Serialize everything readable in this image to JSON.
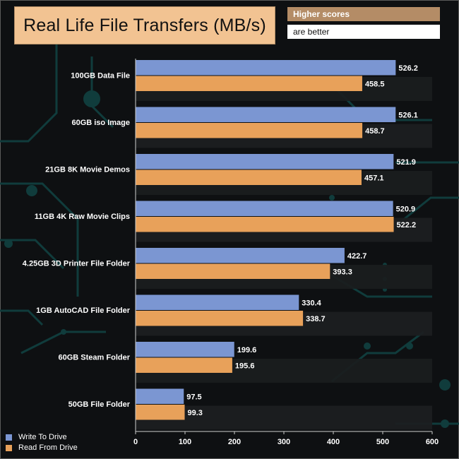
{
  "chart_data": {
    "type": "bar",
    "orientation": "horizontal",
    "title": "Real Life File Transfers (MB/s)",
    "note": [
      "Higher scores",
      "are better"
    ],
    "categories": [
      "100GB Data File",
      "60GB iso Image",
      "21GB 8K Movie Demos",
      "11GB 4K Raw Movie Clips",
      "4.25GB 3D Printer File Folder",
      "1GB AutoCAD File Folder",
      "60GB Steam Folder",
      "50GB File Folder"
    ],
    "series": [
      {
        "name": "Write To  Drive",
        "color": "#7b96d2",
        "values": [
          526.2,
          526.1,
          521.9,
          520.9,
          422.7,
          330.4,
          199.6,
          97.5
        ]
      },
      {
        "name": "Read From  Drive",
        "color": "#e8a15a",
        "values": [
          458.5,
          458.7,
          457.1,
          522.2,
          393.3,
          338.7,
          195.6,
          99.3
        ]
      }
    ],
    "xlim": [
      0,
      600
    ],
    "xticks": [
      0,
      100,
      200,
      300,
      400,
      500,
      600
    ],
    "legend_position": "bottom-left"
  }
}
